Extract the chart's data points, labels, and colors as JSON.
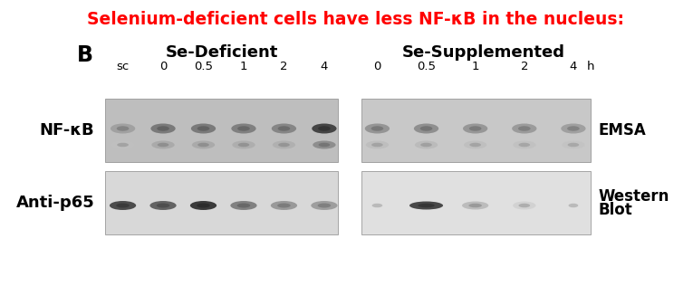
{
  "title": "Selenium-deficient cells have less NF-κB in the nucleus:",
  "title_color": "#ff0000",
  "title_fontsize": 13.5,
  "panel_label": "B",
  "group1_label": "Se-Deficient",
  "group2_label": "Se-Supplemented",
  "lane_labels_def": [
    "sc",
    "0",
    "0.5",
    "1",
    "2",
    "4"
  ],
  "lane_labels_sup": [
    "0",
    "0.5",
    "1",
    "2",
    "4"
  ],
  "lane_label_h": "h",
  "left_label_top": "NF-κB",
  "left_label_bottom": "Anti-p65",
  "right_label_top": "EMSA",
  "right_label_bottom_1": "Western",
  "right_label_bottom_2": "Blot",
  "bg_color": "#ffffff",
  "gel_bg_def": "#bebebe",
  "gel_bg_sup": "#c8c8c8",
  "gel_bg_def_west": "#d8d8d8",
  "gel_bg_sup_west": "#e0e0e0"
}
